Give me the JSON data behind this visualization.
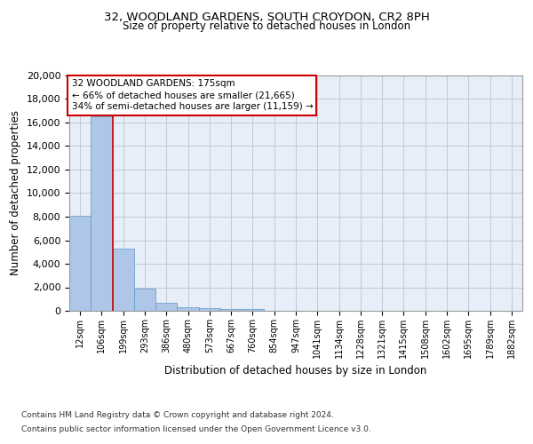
{
  "title1": "32, WOODLAND GARDENS, SOUTH CROYDON, CR2 8PH",
  "title2": "Size of property relative to detached houses in London",
  "xlabel": "Distribution of detached houses by size in London",
  "ylabel": "Number of detached properties",
  "categories": [
    "12sqm",
    "106sqm",
    "199sqm",
    "293sqm",
    "386sqm",
    "480sqm",
    "573sqm",
    "667sqm",
    "760sqm",
    "854sqm",
    "947sqm",
    "1041sqm",
    "1134sqm",
    "1228sqm",
    "1321sqm",
    "1415sqm",
    "1508sqm",
    "1602sqm",
    "1695sqm",
    "1789sqm",
    "1882sqm"
  ],
  "values": [
    8100,
    16500,
    5300,
    1850,
    650,
    310,
    190,
    150,
    130,
    0,
    0,
    0,
    0,
    0,
    0,
    0,
    0,
    0,
    0,
    0,
    0
  ],
  "bar_color": "#aec6e8",
  "bar_edge_color": "#5a96c8",
  "vline_x": 1.5,
  "vline_color": "#cc0000",
  "annotation_title": "32 WOODLAND GARDENS: 175sqm",
  "annotation_line1": "← 66% of detached houses are smaller (21,665)",
  "annotation_line2": "34% of semi-detached houses are larger (11,159) →",
  "annotation_box_color": "#ffffff",
  "annotation_box_edge": "#cc0000",
  "ylim": [
    0,
    20000
  ],
  "yticks": [
    0,
    2000,
    4000,
    6000,
    8000,
    10000,
    12000,
    14000,
    16000,
    18000,
    20000
  ],
  "grid_color": "#c0c8d8",
  "background_color": "#e8eef8",
  "footnote1": "Contains HM Land Registry data © Crown copyright and database right 2024.",
  "footnote2": "Contains public sector information licensed under the Open Government Licence v3.0."
}
